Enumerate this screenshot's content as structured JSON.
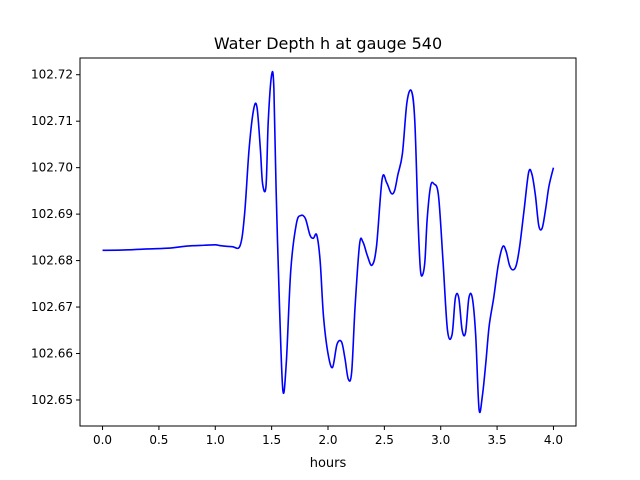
{
  "chart_data": {
    "type": "line",
    "title": "Water Depth h at gauge 540",
    "xlabel": "hours",
    "ylabel": "",
    "xlim": [
      -0.2,
      4.2
    ],
    "ylim": [
      102.6444,
      102.7236
    ],
    "x_ticks": [
      0.0,
      0.5,
      1.0,
      1.5,
      2.0,
      2.5,
      3.0,
      3.5,
      4.0
    ],
    "x_tick_labels": [
      "0.0",
      "0.5",
      "1.0",
      "1.5",
      "2.0",
      "2.5",
      "3.0",
      "3.5",
      "4.0"
    ],
    "y_ticks": [
      102.65,
      102.66,
      102.67,
      102.68,
      102.69,
      102.7,
      102.71,
      102.72
    ],
    "y_tick_labels": [
      "102.65",
      "102.66",
      "102.67",
      "102.68",
      "102.69",
      "102.70",
      "102.71",
      "102.72"
    ],
    "grid": false,
    "legend": "none",
    "colors": {
      "line": "#0000ff",
      "axes": "#000000",
      "background": "#ffffff"
    },
    "series": [
      {
        "x": [
          0.0,
          0.2,
          0.4,
          0.6,
          0.7,
          0.8,
          0.9,
          1.0,
          1.05,
          1.15,
          1.22,
          1.26,
          1.3,
          1.34,
          1.37,
          1.4,
          1.42,
          1.45,
          1.47,
          1.5,
          1.52,
          1.54,
          1.57,
          1.6,
          1.63,
          1.67,
          1.72,
          1.76,
          1.8,
          1.84,
          1.87,
          1.9,
          1.93,
          1.96,
          2.0,
          2.04,
          2.08,
          2.12,
          2.15,
          2.18,
          2.21,
          2.24,
          2.28,
          2.31,
          2.35,
          2.39,
          2.43,
          2.48,
          2.52,
          2.56,
          2.59,
          2.62,
          2.66,
          2.7,
          2.74,
          2.77,
          2.8,
          2.82,
          2.84,
          2.86,
          2.88,
          2.91,
          2.94,
          2.98,
          3.02,
          3.06,
          3.1,
          3.13,
          3.16,
          3.19,
          3.22,
          3.25,
          3.28,
          3.31,
          3.34,
          3.37,
          3.4,
          3.43,
          3.47,
          3.51,
          3.55,
          3.58,
          3.61,
          3.64,
          3.67,
          3.7,
          3.74,
          3.78,
          3.81,
          3.84,
          3.87,
          3.9,
          3.93,
          3.96,
          4.0
        ],
        "y": [
          102.6822,
          102.6823,
          102.6825,
          102.6827,
          102.683,
          102.6832,
          102.6833,
          102.6834,
          102.6832,
          102.683,
          102.6832,
          102.69,
          102.704,
          102.7125,
          102.713,
          102.704,
          102.6965,
          102.696,
          102.71,
          102.72,
          102.717,
          102.695,
          102.67,
          102.652,
          102.658,
          102.678,
          102.688,
          102.6897,
          102.689,
          102.6855,
          102.6848,
          102.6855,
          102.68,
          102.668,
          102.66,
          102.657,
          102.662,
          102.6625,
          102.659,
          102.6545,
          102.656,
          102.67,
          102.6835,
          102.684,
          102.681,
          102.679,
          102.683,
          102.6975,
          102.6968,
          102.6945,
          102.695,
          102.6985,
          102.703,
          102.714,
          102.7165,
          102.71,
          102.688,
          102.678,
          102.677,
          102.68,
          102.689,
          102.696,
          102.6965,
          102.694,
          102.68,
          102.665,
          102.664,
          102.672,
          102.672,
          102.665,
          102.6645,
          102.672,
          102.672,
          102.664,
          102.648,
          102.651,
          102.658,
          102.666,
          102.672,
          102.679,
          102.683,
          102.682,
          102.679,
          102.678,
          102.679,
          102.683,
          102.691,
          102.699,
          102.6985,
          102.694,
          102.6875,
          102.687,
          102.691,
          102.696,
          102.7
        ],
        "color": "#0000ff"
      }
    ]
  }
}
